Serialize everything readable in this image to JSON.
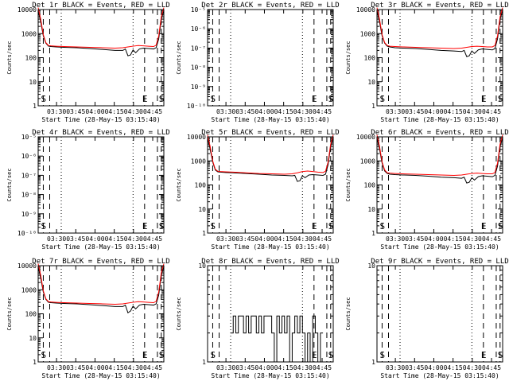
{
  "start_time_label": "Start Time (28-May-15 03:15:40)",
  "ylabel": "Counts/sec",
  "xticks": [
    "03:30",
    "03:45",
    "04:00",
    "04:15",
    "04:30",
    "04:45"
  ],
  "xtick_minutes": [
    14.33,
    29.33,
    44.33,
    59.33,
    74.33,
    89.33
  ],
  "x_range_minutes": [
    0,
    98
  ],
  "colors": {
    "events": "#000000",
    "lld": "#ff0000"
  },
  "chart_data": [
    {
      "type": "line",
      "title": "Det 1r BLACK = Events, RED = LLD",
      "xlabel": "Start Time (28-May-15 03:15:40)",
      "ylabel": "Counts/sec",
      "yscale": "log",
      "ylim": [
        1,
        10000
      ],
      "yticks": [
        "1",
        "10",
        "100",
        "1000",
        "10000"
      ],
      "markers": [
        {
          "t": 4,
          "label": "S"
        },
        {
          "t": 9,
          "label": ""
        },
        {
          "t": 18,
          "label": ""
        },
        {
          "t": 74,
          "label": ""
        },
        {
          "t": 83,
          "label": "E"
        },
        {
          "t": 93,
          "label": ""
        },
        {
          "t": 96,
          "label": "S"
        }
      ],
      "series": [
        {
          "name": "Events",
          "color": "#000000",
          "x": [
            0,
            2,
            4,
            6,
            8,
            10,
            14,
            20,
            30,
            40,
            50,
            60,
            66,
            68,
            70,
            72,
            74,
            76,
            79,
            82,
            86,
            90,
            92,
            94,
            96,
            98
          ],
          "y": [
            9000,
            3000,
            800,
            400,
            300,
            290,
            280,
            270,
            260,
            240,
            220,
            200,
            200,
            230,
            120,
            130,
            210,
            160,
            230,
            250,
            240,
            230,
            260,
            600,
            4000,
            9000
          ]
        },
        {
          "name": "LLD",
          "color": "#ff0000",
          "x": [
            0,
            2,
            4,
            6,
            8,
            10,
            14,
            20,
            30,
            40,
            50,
            60,
            66,
            70,
            74,
            78,
            82,
            86,
            90,
            92,
            94,
            96,
            98
          ],
          "y": [
            12000,
            4000,
            900,
            420,
            320,
            310,
            300,
            290,
            280,
            270,
            260,
            250,
            260,
            280,
            300,
            320,
            310,
            300,
            290,
            330,
            800,
            5000,
            12000
          ]
        }
      ]
    },
    {
      "type": "line",
      "title": "Det 2r BLACK = Events, RED = LLD",
      "xlabel": "Start Time (28-May-15 03:15:40)",
      "ylabel": "Counts/sec",
      "yscale": "log",
      "ylim": [
        1e-10,
        1e-05
      ],
      "yticks": [
        "10⁻¹⁰",
        "10⁻⁹",
        "10⁻⁸",
        "10⁻⁷",
        "10⁻⁶",
        "10⁻⁵"
      ],
      "markers": [
        {
          "t": 4,
          "label": "S"
        },
        {
          "t": 9,
          "label": ""
        },
        {
          "t": 18,
          "label": ""
        },
        {
          "t": 74,
          "label": ""
        },
        {
          "t": 83,
          "label": "E"
        },
        {
          "t": 93,
          "label": ""
        },
        {
          "t": 96,
          "label": "S"
        }
      ],
      "series": []
    },
    {
      "type": "line",
      "title": "Det 3r BLACK = Events, RED = LLD",
      "xlabel": "Start Time (28-May-15 03:15:40)",
      "ylabel": "Counts/sec",
      "yscale": "log",
      "ylim": [
        1,
        10000
      ],
      "yticks": [
        "1",
        "10",
        "100",
        "1000",
        "10000"
      ],
      "markers": [
        {
          "t": 4,
          "label": "S"
        },
        {
          "t": 9,
          "label": ""
        },
        {
          "t": 18,
          "label": ""
        },
        {
          "t": 74,
          "label": ""
        },
        {
          "t": 83,
          "label": "E"
        },
        {
          "t": 93,
          "label": ""
        },
        {
          "t": 96,
          "label": "S"
        }
      ],
      "series": [
        {
          "name": "Events",
          "color": "#000000",
          "x": [
            0,
            2,
            4,
            6,
            8,
            10,
            14,
            20,
            30,
            40,
            50,
            60,
            66,
            68,
            70,
            72,
            74,
            76,
            79,
            82,
            86,
            90,
            92,
            94,
            96,
            98
          ],
          "y": [
            9000,
            3000,
            800,
            400,
            300,
            280,
            260,
            250,
            240,
            220,
            200,
            190,
            180,
            200,
            110,
            120,
            190,
            150,
            210,
            230,
            220,
            210,
            240,
            600,
            4000,
            9000
          ]
        },
        {
          "name": "LLD",
          "color": "#ff0000",
          "x": [
            0,
            2,
            4,
            6,
            8,
            10,
            14,
            20,
            30,
            40,
            50,
            60,
            66,
            70,
            74,
            78,
            82,
            86,
            90,
            92,
            94,
            96,
            98
          ],
          "y": [
            12000,
            4000,
            900,
            420,
            320,
            300,
            290,
            280,
            270,
            260,
            250,
            240,
            250,
            270,
            290,
            300,
            290,
            280,
            280,
            320,
            800,
            5000,
            12000
          ]
        }
      ]
    },
    {
      "type": "line",
      "title": "Det 4r BLACK = Events, RED = LLD",
      "xlabel": "Start Time (28-May-15 03:15:40)",
      "ylabel": "Counts/sec",
      "yscale": "log",
      "ylim": [
        1e-10,
        1e-05
      ],
      "yticks": [
        "10⁻¹⁰",
        "10⁻⁹",
        "10⁻⁸",
        "10⁻⁷",
        "10⁻⁶",
        "10⁻⁵"
      ],
      "markers": [
        {
          "t": 4,
          "label": "S"
        },
        {
          "t": 9,
          "label": ""
        },
        {
          "t": 18,
          "label": ""
        },
        {
          "t": 74,
          "label": ""
        },
        {
          "t": 83,
          "label": "E"
        },
        {
          "t": 93,
          "label": ""
        },
        {
          "t": 96,
          "label": "S"
        }
      ],
      "series": []
    },
    {
      "type": "line",
      "title": "Det 5r BLACK = Events, RED = LLD",
      "xlabel": "Start Time (28-May-15 03:15:40)",
      "ylabel": "Counts/sec",
      "yscale": "log",
      "ylim": [
        1,
        10000
      ],
      "yticks": [
        "1",
        "10",
        "100",
        "1000",
        "10000"
      ],
      "markers": [
        {
          "t": 4,
          "label": "S"
        },
        {
          "t": 9,
          "label": ""
        },
        {
          "t": 18,
          "label": ""
        },
        {
          "t": 74,
          "label": ""
        },
        {
          "t": 83,
          "label": "E"
        },
        {
          "t": 93,
          "label": ""
        },
        {
          "t": 96,
          "label": "S"
        }
      ],
      "series": [
        {
          "name": "Events",
          "color": "#000000",
          "x": [
            0,
            2,
            4,
            6,
            8,
            10,
            14,
            20,
            30,
            40,
            50,
            60,
            66,
            68,
            70,
            72,
            74,
            76,
            79,
            82,
            86,
            90,
            92,
            94,
            96,
            98
          ],
          "y": [
            9000,
            3000,
            900,
            420,
            350,
            340,
            330,
            320,
            300,
            280,
            260,
            250,
            240,
            250,
            140,
            150,
            240,
            200,
            260,
            270,
            260,
            250,
            280,
            700,
            4000,
            9000
          ]
        },
        {
          "name": "LLD",
          "color": "#ff0000",
          "x": [
            0,
            2,
            4,
            6,
            8,
            10,
            14,
            20,
            30,
            40,
            50,
            60,
            66,
            70,
            74,
            78,
            82,
            86,
            90,
            92,
            94,
            96,
            98
          ],
          "y": [
            12000,
            4000,
            1000,
            450,
            370,
            360,
            350,
            340,
            320,
            300,
            290,
            280,
            290,
            320,
            360,
            380,
            360,
            340,
            330,
            370,
            900,
            5000,
            12000
          ]
        }
      ]
    },
    {
      "type": "line",
      "title": "Det 6r BLACK = Events, RED = LLD",
      "xlabel": "Start Time (28-May-15 03:15:40)",
      "ylabel": "Counts/sec",
      "yscale": "log",
      "ylim": [
        1,
        10000
      ],
      "yticks": [
        "1",
        "10",
        "100",
        "1000",
        "10000"
      ],
      "markers": [
        {
          "t": 4,
          "label": "S"
        },
        {
          "t": 9,
          "label": ""
        },
        {
          "t": 18,
          "label": ""
        },
        {
          "t": 74,
          "label": ""
        },
        {
          "t": 83,
          "label": "E"
        },
        {
          "t": 93,
          "label": ""
        },
        {
          "t": 96,
          "label": "S"
        }
      ],
      "series": [
        {
          "name": "Events",
          "color": "#000000",
          "x": [
            0,
            2,
            4,
            6,
            8,
            10,
            14,
            20,
            30,
            40,
            50,
            60,
            66,
            68,
            70,
            72,
            74,
            76,
            79,
            82,
            86,
            90,
            92,
            94,
            96,
            98
          ],
          "y": [
            9000,
            3000,
            800,
            380,
            300,
            280,
            270,
            260,
            250,
            230,
            210,
            200,
            190,
            210,
            120,
            130,
            200,
            160,
            220,
            240,
            230,
            220,
            250,
            600,
            4000,
            9000
          ]
        },
        {
          "name": "LLD",
          "color": "#ff0000",
          "x": [
            0,
            2,
            4,
            6,
            8,
            10,
            14,
            20,
            30,
            40,
            50,
            60,
            66,
            70,
            74,
            78,
            82,
            86,
            90,
            92,
            94,
            96,
            98
          ],
          "y": [
            12000,
            4000,
            900,
            420,
            320,
            310,
            300,
            290,
            280,
            270,
            260,
            250,
            260,
            280,
            300,
            310,
            300,
            290,
            290,
            330,
            800,
            5000,
            12000
          ]
        }
      ]
    },
    {
      "type": "line",
      "title": "Det 7r BLACK = Events, RED = LLD",
      "xlabel": "Start Time (28-May-15 03:15:40)",
      "ylabel": "Counts/sec",
      "yscale": "log",
      "ylim": [
        1,
        10000
      ],
      "yticks": [
        "1",
        "10",
        "100",
        "1000",
        "10000"
      ],
      "markers": [
        {
          "t": 4,
          "label": "S"
        },
        {
          "t": 9,
          "label": ""
        },
        {
          "t": 18,
          "label": ""
        },
        {
          "t": 74,
          "label": ""
        },
        {
          "t": 83,
          "label": "E"
        },
        {
          "t": 93,
          "label": ""
        },
        {
          "t": 96,
          "label": "S"
        }
      ],
      "series": [
        {
          "name": "Events",
          "color": "#000000",
          "x": [
            0,
            2,
            4,
            6,
            8,
            10,
            14,
            20,
            30,
            40,
            50,
            60,
            66,
            68,
            70,
            72,
            74,
            76,
            79,
            82,
            86,
            90,
            92,
            94,
            96,
            98
          ],
          "y": [
            9000,
            3000,
            800,
            400,
            300,
            290,
            280,
            270,
            260,
            240,
            220,
            200,
            200,
            230,
            110,
            130,
            210,
            160,
            230,
            250,
            240,
            230,
            260,
            600,
            4000,
            9000
          ]
        },
        {
          "name": "LLD",
          "color": "#ff0000",
          "x": [
            0,
            2,
            4,
            6,
            8,
            10,
            14,
            20,
            30,
            40,
            50,
            60,
            66,
            70,
            74,
            78,
            82,
            86,
            90,
            92,
            94,
            96,
            98
          ],
          "y": [
            12000,
            4000,
            900,
            420,
            320,
            310,
            300,
            290,
            280,
            270,
            260,
            250,
            260,
            280,
            300,
            320,
            310,
            300,
            290,
            330,
            800,
            5000,
            12000
          ]
        }
      ]
    },
    {
      "type": "line",
      "title": "Det 8r BLACK = Events, RED = LLD",
      "xlabel": "Start Time (28-May-15 03:15:40)",
      "ylabel": "Counts/sec",
      "yscale": "log",
      "ylim": [
        1,
        10
      ],
      "yticks": [
        "1",
        "10"
      ],
      "markers": [
        {
          "t": 4,
          "label": "S"
        },
        {
          "t": 9,
          "label": ""
        },
        {
          "t": 18,
          "label": ""
        },
        {
          "t": 74,
          "label": ""
        },
        {
          "t": 83,
          "label": "E"
        },
        {
          "t": 93,
          "label": ""
        },
        {
          "t": 96,
          "label": "S"
        }
      ],
      "series": [
        {
          "name": "Events",
          "color": "#000000",
          "steps": true,
          "x": [
            18,
            20,
            22,
            24,
            26,
            28,
            30,
            32,
            34,
            36,
            38,
            40,
            42,
            44,
            46,
            48,
            50,
            52,
            54,
            56,
            58,
            60,
            62,
            64,
            66,
            68,
            70,
            72,
            74,
            76,
            78,
            80,
            82,
            84,
            86,
            88
          ],
          "y": [
            2,
            3,
            2,
            3,
            3,
            2,
            3,
            2,
            3,
            3,
            2,
            3,
            2,
            3,
            3,
            3,
            2,
            1,
            3,
            2,
            3,
            2,
            3,
            1,
            2,
            3,
            2,
            3,
            2,
            1,
            2,
            1,
            3,
            2,
            1,
            2
          ]
        }
      ]
    },
    {
      "type": "line",
      "title": "Det 9r BLACK = Events, RED = LLD",
      "xlabel": "Start Time (28-May-15 03:15:40)",
      "ylabel": "Counts/sec",
      "yscale": "log",
      "ylim": [
        1,
        10
      ],
      "yticks": [
        "1",
        "10"
      ],
      "markers": [
        {
          "t": 4,
          "label": "S"
        },
        {
          "t": 9,
          "label": ""
        },
        {
          "t": 18,
          "label": ""
        },
        {
          "t": 74,
          "label": ""
        },
        {
          "t": 83,
          "label": "E"
        },
        {
          "t": 93,
          "label": ""
        },
        {
          "t": 96,
          "label": "S"
        }
      ],
      "series": []
    }
  ]
}
